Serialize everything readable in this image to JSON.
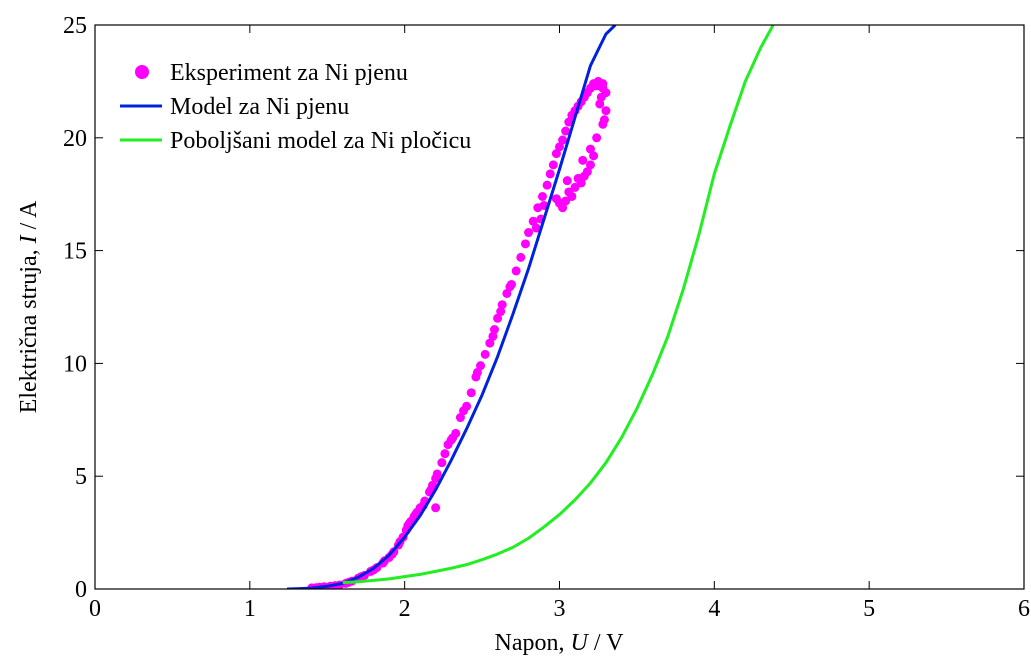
{
  "chart_data": {
    "type": "scatter",
    "xlabel": {
      "prefix": "Napon, ",
      "var": "U",
      "suffix": " / V"
    },
    "ylabel": {
      "prefix": "Električna struja, ",
      "var": "I",
      "suffix": " / A"
    },
    "xlim": [
      0,
      6
    ],
    "ylim": [
      0,
      25
    ],
    "xticks": [
      "0",
      "1",
      "2",
      "3",
      "4",
      "5",
      "6"
    ],
    "yticks": [
      "0",
      "5",
      "10",
      "15",
      "20",
      "25"
    ],
    "grid": false,
    "legend_position": "top-left",
    "series": [
      {
        "name": "Eksperiment za Ni pjenu",
        "kind": "scatter",
        "color": "#ff00ff",
        "points": [
          [
            1.4,
            0.05
          ],
          [
            1.45,
            0.08
          ],
          [
            1.52,
            0.12
          ],
          [
            1.58,
            0.18
          ],
          [
            1.62,
            0.25
          ],
          [
            1.66,
            0.35
          ],
          [
            1.7,
            0.48
          ],
          [
            1.74,
            0.6
          ],
          [
            1.78,
            0.78
          ],
          [
            1.82,
            0.95
          ],
          [
            1.86,
            1.15
          ],
          [
            1.9,
            1.4
          ],
          [
            1.93,
            1.65
          ],
          [
            1.96,
            1.95
          ],
          [
            1.99,
            2.3
          ],
          [
            2.01,
            2.6
          ],
          [
            2.02,
            2.8
          ],
          [
            2.04,
            3.0
          ],
          [
            2.06,
            3.2
          ],
          [
            2.08,
            3.4
          ],
          [
            2.1,
            3.6
          ],
          [
            2.13,
            3.9
          ],
          [
            2.16,
            4.3
          ],
          [
            2.18,
            4.6
          ],
          [
            2.2,
            4.9
          ],
          [
            2.21,
            5.1
          ],
          [
            2.2,
            3.6
          ],
          [
            2.26,
            6.0
          ],
          [
            2.28,
            6.4
          ],
          [
            2.3,
            6.6
          ],
          [
            2.33,
            6.9
          ],
          [
            2.36,
            7.6
          ],
          [
            2.4,
            8.1
          ],
          [
            2.43,
            8.7
          ],
          [
            2.46,
            9.4
          ],
          [
            2.49,
            9.9
          ],
          [
            2.52,
            10.4
          ],
          [
            2.55,
            10.9
          ],
          [
            2.58,
            11.5
          ],
          [
            2.6,
            12.0
          ],
          [
            2.63,
            12.6
          ],
          [
            2.66,
            13.1
          ],
          [
            2.69,
            13.5
          ],
          [
            2.72,
            14.1
          ],
          [
            2.75,
            14.7
          ],
          [
            2.78,
            15.3
          ],
          [
            2.8,
            15.8
          ],
          [
            2.83,
            16.3
          ],
          [
            2.86,
            16.9
          ],
          [
            2.89,
            17.4
          ],
          [
            2.92,
            17.9
          ],
          [
            2.94,
            18.4
          ],
          [
            2.96,
            18.8
          ],
          [
            2.98,
            19.3
          ],
          [
            3.0,
            19.6
          ],
          [
            3.02,
            19.9
          ],
          [
            3.04,
            20.3
          ],
          [
            3.06,
            20.7
          ],
          [
            3.08,
            21.0
          ],
          [
            3.1,
            21.2
          ],
          [
            3.12,
            21.4
          ],
          [
            3.14,
            21.6
          ],
          [
            3.16,
            21.8
          ],
          [
            3.18,
            22.0
          ],
          [
            3.2,
            22.2
          ],
          [
            3.22,
            22.4
          ],
          [
            3.25,
            22.5
          ],
          [
            3.28,
            22.4
          ],
          [
            3.3,
            22.0
          ],
          [
            3.3,
            21.2
          ],
          [
            3.29,
            20.8
          ],
          [
            3.28,
            20.6
          ],
          [
            3.26,
            21.5
          ],
          [
            3.24,
            20.0
          ],
          [
            3.22,
            19.2
          ],
          [
            3.2,
            18.8
          ],
          [
            3.18,
            18.5
          ],
          [
            3.16,
            18.3
          ],
          [
            3.14,
            18.0
          ],
          [
            3.12,
            18.2
          ],
          [
            3.1,
            17.8
          ],
          [
            3.08,
            17.4
          ],
          [
            3.06,
            17.6
          ],
          [
            3.04,
            17.2
          ],
          [
            3.02,
            16.9
          ],
          [
            3.0,
            17.1
          ],
          [
            2.98,
            17.3
          ],
          [
            3.05,
            18.1
          ],
          [
            3.15,
            19.0
          ],
          [
            3.2,
            19.5
          ],
          [
            3.27,
            21.8
          ],
          [
            3.24,
            22.3
          ],
          [
            3.28,
            22.2
          ],
          [
            2.9,
            17.0
          ],
          [
            2.88,
            16.4
          ],
          [
            2.85,
            16.0
          ],
          [
            2.68,
            13.4
          ],
          [
            2.62,
            12.3
          ],
          [
            2.57,
            11.2
          ],
          [
            2.47,
            9.6
          ],
          [
            2.38,
            7.9
          ],
          [
            2.31,
            6.7
          ],
          [
            2.24,
            5.6
          ],
          [
            2.17,
            4.4
          ],
          [
            2.12,
            3.7
          ],
          [
            2.07,
            3.3
          ],
          [
            2.03,
            2.9
          ],
          [
            1.97,
            2.1
          ],
          [
            1.92,
            1.55
          ],
          [
            1.87,
            1.25
          ],
          [
            1.8,
            0.85
          ],
          [
            1.72,
            0.55
          ],
          [
            1.64,
            0.3
          ],
          [
            1.55,
            0.15
          ],
          [
            1.48,
            0.1
          ],
          [
            1.43,
            0.06
          ]
        ]
      },
      {
        "name": "Model za Ni pjenu",
        "kind": "line",
        "color": "#0022dd",
        "points": [
          [
            1.24,
            0.0
          ],
          [
            1.3,
            0.01
          ],
          [
            1.4,
            0.04
          ],
          [
            1.5,
            0.12
          ],
          [
            1.6,
            0.25
          ],
          [
            1.7,
            0.52
          ],
          [
            1.8,
            0.92
          ],
          [
            1.9,
            1.5
          ],
          [
            2.0,
            2.3
          ],
          [
            2.1,
            3.25
          ],
          [
            2.2,
            4.4
          ],
          [
            2.3,
            5.7
          ],
          [
            2.4,
            7.1
          ],
          [
            2.5,
            8.6
          ],
          [
            2.6,
            10.3
          ],
          [
            2.7,
            12.2
          ],
          [
            2.8,
            14.2
          ],
          [
            2.9,
            16.4
          ],
          [
            3.0,
            18.6
          ],
          [
            3.1,
            20.9
          ],
          [
            3.2,
            23.2
          ],
          [
            3.3,
            24.6
          ],
          [
            3.36,
            25.0
          ]
        ]
      },
      {
        "name": "Poboljšani model za Ni pločicu",
        "kind": "line",
        "color": "#22ee22",
        "points": [
          [
            1.6,
            0.28
          ],
          [
            1.7,
            0.32
          ],
          [
            1.8,
            0.38
          ],
          [
            1.9,
            0.45
          ],
          [
            2.0,
            0.55
          ],
          [
            2.1,
            0.65
          ],
          [
            2.2,
            0.78
          ],
          [
            2.3,
            0.92
          ],
          [
            2.4,
            1.08
          ],
          [
            2.5,
            1.3
          ],
          [
            2.6,
            1.55
          ],
          [
            2.7,
            1.85
          ],
          [
            2.8,
            2.25
          ],
          [
            2.9,
            2.75
          ],
          [
            3.0,
            3.3
          ],
          [
            3.1,
            3.95
          ],
          [
            3.2,
            4.7
          ],
          [
            3.3,
            5.6
          ],
          [
            3.4,
            6.7
          ],
          [
            3.5,
            8.0
          ],
          [
            3.6,
            9.5
          ],
          [
            3.7,
            11.2
          ],
          [
            3.8,
            13.3
          ],
          [
            3.9,
            15.7
          ],
          [
            4.0,
            18.4
          ],
          [
            4.1,
            20.5
          ],
          [
            4.2,
            22.5
          ],
          [
            4.3,
            24.0
          ],
          [
            4.38,
            25.0
          ]
        ]
      }
    ]
  }
}
